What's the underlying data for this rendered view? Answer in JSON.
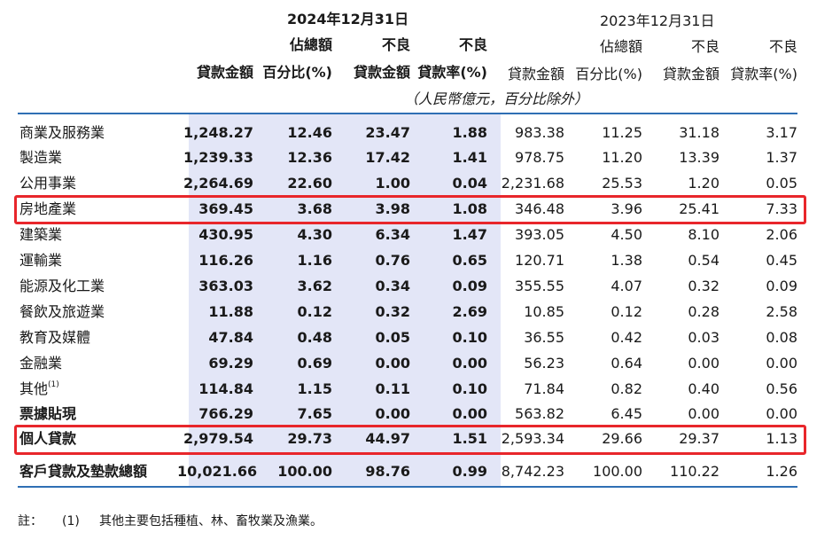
{
  "header": {
    "date_2024": "2024年12月31日",
    "date_2023": "2023年12月31日",
    "col_loan": "貸款金額",
    "col_share_1": "佔總額",
    "col_share_2": "百分比(%)",
    "col_npl_1": "不良",
    "col_npl_2": "貸款金額",
    "col_ratio_1": "不良",
    "col_ratio_2": "貸款率(%)",
    "unit_note": "（人民幣億元，百分比除外）"
  },
  "rows": [
    {
      "name": "商業及服務業",
      "y2024": [
        "1,248.27",
        "12.46",
        "23.47",
        "1.88"
      ],
      "y2023": [
        "983.38",
        "11.25",
        "31.18",
        "3.17"
      ]
    },
    {
      "name": "製造業",
      "y2024": [
        "1,239.33",
        "12.36",
        "17.42",
        "1.41"
      ],
      "y2023": [
        "978.75",
        "11.20",
        "13.39",
        "1.37"
      ]
    },
    {
      "name": "公用事業",
      "y2024": [
        "2,264.69",
        "22.60",
        "1.00",
        "0.04"
      ],
      "y2023": [
        "2,231.68",
        "25.53",
        "1.20",
        "0.05"
      ]
    },
    {
      "name": "房地產業",
      "y2024": [
        "369.45",
        "3.68",
        "3.98",
        "1.08"
      ],
      "y2023": [
        "346.48",
        "3.96",
        "25.41",
        "7.33"
      ]
    },
    {
      "name": "建築業",
      "y2024": [
        "430.95",
        "4.30",
        "6.34",
        "1.47"
      ],
      "y2023": [
        "393.05",
        "4.50",
        "8.10",
        "2.06"
      ]
    },
    {
      "name": "運輸業",
      "y2024": [
        "116.26",
        "1.16",
        "0.76",
        "0.65"
      ],
      "y2023": [
        "120.71",
        "1.38",
        "0.54",
        "0.45"
      ]
    },
    {
      "name": "能源及化工業",
      "y2024": [
        "363.03",
        "3.62",
        "0.34",
        "0.09"
      ],
      "y2023": [
        "355.55",
        "4.07",
        "0.32",
        "0.09"
      ]
    },
    {
      "name": "餐飲及旅遊業",
      "y2024": [
        "11.88",
        "0.12",
        "0.32",
        "2.69"
      ],
      "y2023": [
        "10.85",
        "0.12",
        "0.28",
        "2.58"
      ]
    },
    {
      "name": "教育及媒體",
      "y2024": [
        "47.84",
        "0.48",
        "0.05",
        "0.10"
      ],
      "y2023": [
        "36.55",
        "0.42",
        "0.03",
        "0.08"
      ]
    },
    {
      "name": "金融業",
      "y2024": [
        "69.29",
        "0.69",
        "0.00",
        "0.00"
      ],
      "y2023": [
        "56.23",
        "0.64",
        "0.00",
        "0.00"
      ]
    },
    {
      "name": "其他",
      "sup": "(1)",
      "y2024": [
        "114.84",
        "1.15",
        "0.11",
        "0.10"
      ],
      "y2023": [
        "71.84",
        "0.82",
        "0.40",
        "0.56"
      ]
    },
    {
      "name": "票據貼現",
      "y2024": [
        "766.29",
        "7.65",
        "0.00",
        "0.00"
      ],
      "y2023": [
        "563.82",
        "6.45",
        "0.00",
        "0.00"
      ]
    },
    {
      "name": "個人貸款",
      "y2024": [
        "2,979.54",
        "29.73",
        "44.97",
        "1.51"
      ],
      "y2023": [
        "2,593.34",
        "29.66",
        "29.37",
        "1.13"
      ]
    },
    {
      "name": "客戶貸款及墊款總額",
      "y2024": [
        "10,021.66",
        "100.00",
        "98.76",
        "0.99"
      ],
      "y2023": [
        "8,742.23",
        "100.00",
        "110.22",
        "1.26"
      ]
    }
  ],
  "footnote": {
    "label": "註：",
    "ref": "(1)",
    "text": "其他主要包括種植、林、畜牧業及漁業。"
  },
  "colors": {
    "accent_line": "#2f6fb4",
    "shade": "#e3e6f7",
    "highlight": "#e8262b"
  }
}
